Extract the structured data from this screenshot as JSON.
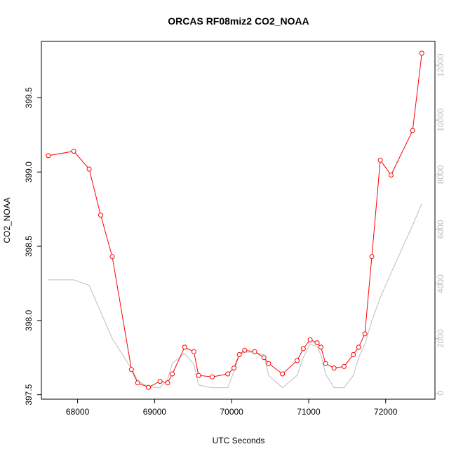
{
  "chart_data": {
    "type": "line",
    "title": "ORCAS RF08miz2 CO2_NOAA",
    "xlabel": "UTC Seconds",
    "ylabel": "CO2_NOAA",
    "xlim": [
      67530,
      72640
    ],
    "ylim": [
      397.47,
      399.88
    ],
    "y2lim": [
      -220,
      12880
    ],
    "x_ticks": [
      68000,
      69000,
      70000,
      71000,
      72000
    ],
    "x_tick_labels": [
      "68000",
      "69000",
      "70000",
      "71000",
      "72000"
    ],
    "y_ticks": [
      397.5,
      398.0,
      398.5,
      399.0,
      399.5
    ],
    "y_tick_labels": [
      "397.5",
      "398.0",
      "398.5",
      "399.0",
      "399.5"
    ],
    "y2_ticks": [
      0,
      2000,
      4000,
      6000,
      8000,
      10000,
      12000
    ],
    "y2_tick_labels": [
      "0",
      "2000",
      "4000",
      "6000",
      "8000",
      "10000",
      "12000"
    ],
    "grid": false,
    "colors": {
      "co2": "#ff0000",
      "altitude": "#bebebe",
      "frame": "#000000"
    },
    "series": [
      {
        "axis": "left",
        "style": "line+open-circle",
        "color": "#ff0000",
        "x": [
          67620,
          67950,
          68150,
          68300,
          68450,
          68700,
          68780,
          68920,
          69070,
          69170,
          69230,
          69390,
          69510,
          69570,
          69750,
          69950,
          70030,
          70100,
          70170,
          70300,
          70420,
          70480,
          70660,
          70850,
          70930,
          71020,
          71110,
          71160,
          71220,
          71330,
          71460,
          71580,
          71650,
          71730,
          71820,
          71930,
          72070,
          72350,
          72470
        ],
        "y": [
          399.11,
          399.14,
          399.02,
          398.71,
          398.43,
          397.67,
          397.58,
          397.55,
          397.59,
          397.58,
          397.64,
          397.82,
          397.79,
          397.63,
          397.62,
          397.64,
          397.68,
          397.77,
          397.8,
          397.79,
          397.75,
          397.71,
          397.64,
          397.73,
          397.81,
          397.87,
          397.85,
          397.82,
          397.71,
          397.68,
          397.69,
          397.77,
          397.82,
          397.91,
          398.43,
          399.08,
          398.98,
          399.28,
          399.8
        ]
      },
      {
        "axis": "right",
        "style": "line",
        "color": "#bebebe",
        "x": [
          67620,
          67950,
          68150,
          68450,
          68700,
          68780,
          68920,
          69070,
          69170,
          69230,
          69390,
          69510,
          69570,
          69750,
          69950,
          70030,
          70100,
          70170,
          70300,
          70420,
          70480,
          70660,
          70850,
          70930,
          71020,
          71110,
          71160,
          71220,
          71330,
          71460,
          71580,
          71650,
          71730,
          71820,
          71930,
          72070,
          72350,
          72470
        ],
        "y": [
          4150,
          4150,
          3950,
          2000,
          900,
          450,
          230,
          200,
          500,
          1100,
          1450,
          1050,
          300,
          200,
          200,
          800,
          1400,
          1500,
          1500,
          1400,
          650,
          200,
          650,
          1300,
          1800,
          1700,
          1400,
          700,
          200,
          200,
          650,
          1300,
          1800,
          2650,
          3500,
          4400,
          6150,
          6950
        ]
      }
    ]
  }
}
